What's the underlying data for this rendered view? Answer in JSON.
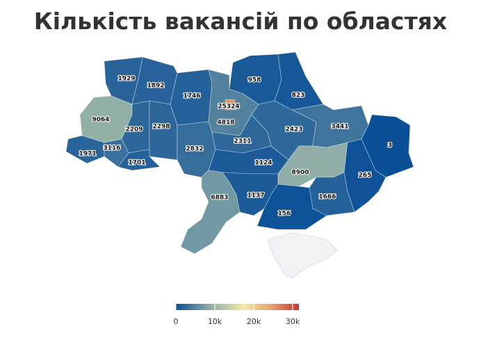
{
  "title": "Кількість вакансій по областях",
  "map": {
    "values": [
      1929,
      1892,
      1746,
      958,
      823,
      25324,
      9064,
      2209,
      2298,
      4818,
      2423,
      3441,
      3,
      1971,
      3116,
      1701,
      2832,
      2311,
      1124,
      8900,
      265,
      6883,
      1137,
      1666,
      156
    ],
    "colorscale": [
      [
        0,
        "#0b4f96"
      ],
      [
        0.3,
        "#99b4a8"
      ],
      [
        0.55,
        "#f2eaa6"
      ],
      [
        0.78,
        "#e3a06c"
      ],
      [
        1,
        "#c0392b"
      ]
    ],
    "zlim": [
      0,
      31600
    ],
    "ticks": [
      0,
      {
        "value": 10000,
        "label": "10k"
      },
      {
        "value": 20000,
        "label": "20k"
      },
      {
        "value": 30000,
        "label": "30k"
      }
    ]
  }
}
